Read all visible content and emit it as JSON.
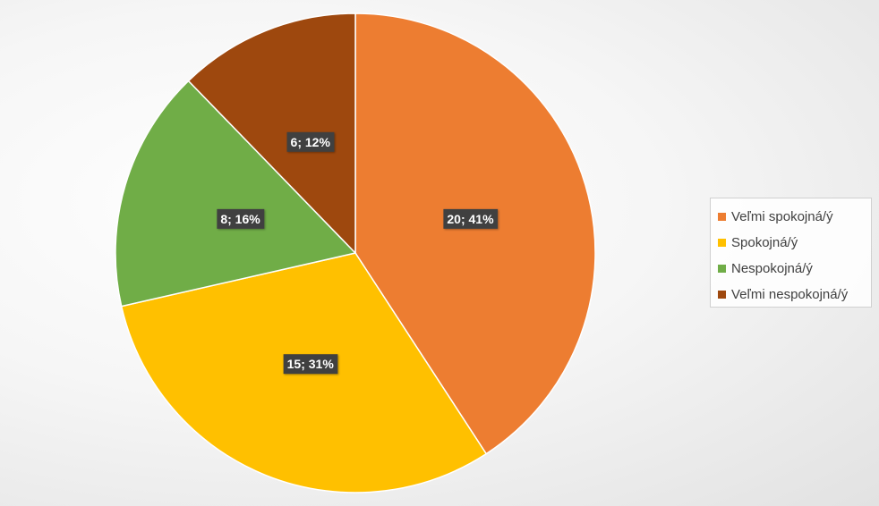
{
  "chart_data": {
    "type": "pie",
    "title": "",
    "slices": [
      {
        "name": "Veľmi spokojná/ý",
        "value": 20,
        "label": "20; 41%",
        "color": "#ED7D31"
      },
      {
        "name": "Spokojná/ý",
        "value": 15,
        "label": "15; 31%",
        "color": "#FFC000"
      },
      {
        "name": "Nespokojná/ý",
        "value": 8,
        "label": "8; 16%",
        "color": "#70AD47"
      },
      {
        "name": "Veľmi nespokojná/ý",
        "value": 6,
        "label": "6; 12%",
        "color": "#9E480E"
      }
    ],
    "legend_position": "right",
    "data_label_style": {
      "background": "#404040",
      "text_color": "#FFFFFF"
    }
  }
}
